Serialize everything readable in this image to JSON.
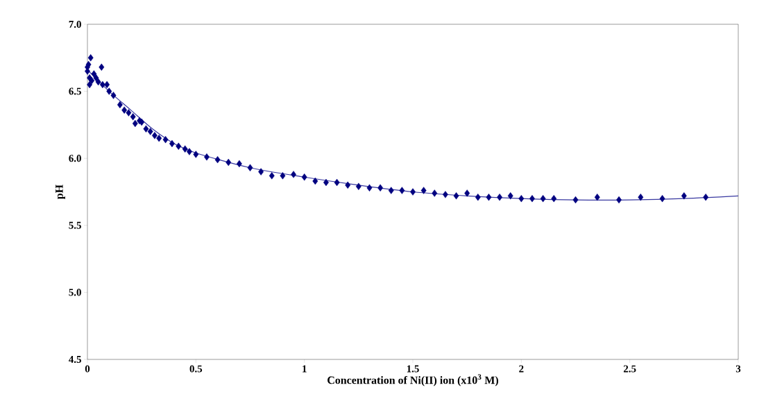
{
  "chart_data": {
    "type": "scatter",
    "xlabel": "Concentration of Ni(II) ion (x10$^{3}$ M)",
    "ylabel": "pH",
    "xlim": [
      0,
      3
    ],
    "ylim": [
      4.5,
      7.0
    ],
    "xticks": [
      0,
      0.5,
      1,
      1.5,
      2,
      2.5,
      3
    ],
    "yticks": [
      {
        "value": 4.5,
        "label": "4.5"
      },
      {
        "value": 5.0,
        "label": "5.0"
      },
      {
        "value": 5.5,
        "label": "5.5"
      },
      {
        "value": 6.0,
        "label": "6.0"
      },
      {
        "value": 6.5,
        "label": "6.5"
      },
      {
        "value": 7.0,
        "label": "7.0"
      }
    ],
    "series": [
      {
        "marker": "diamond",
        "color": "#000080",
        "x": [
          0,
          0,
          0.005,
          0.01,
          0.01,
          0.015,
          0.02,
          0.03,
          0.04,
          0.05,
          0.065,
          0.07,
          0.09,
          0.1,
          0.12,
          0.15,
          0.17,
          0.19,
          0.21,
          0.22,
          0.24,
          0.25,
          0.27,
          0.29,
          0.31,
          0.33,
          0.36,
          0.39,
          0.42,
          0.45,
          0.47,
          0.5,
          0.55,
          0.6,
          0.65,
          0.7,
          0.75,
          0.8,
          0.85,
          0.9,
          0.95,
          1.0,
          1.05,
          1.1,
          1.15,
          1.2,
          1.25,
          1.3,
          1.35,
          1.4,
          1.45,
          1.5,
          1.55,
          1.6,
          1.65,
          1.7,
          1.75,
          1.8,
          1.85,
          1.9,
          1.95,
          2.0,
          2.05,
          2.1,
          2.15,
          2.25,
          2.35,
          2.45,
          2.55,
          2.65,
          2.75,
          2.85
        ],
        "values": [
          6.68,
          6.65,
          6.7,
          6.6,
          6.55,
          6.75,
          6.58,
          6.63,
          6.6,
          6.57,
          6.68,
          6.55,
          6.55,
          6.5,
          6.47,
          6.4,
          6.36,
          6.34,
          6.31,
          6.26,
          6.28,
          6.27,
          6.22,
          6.2,
          6.17,
          6.15,
          6.14,
          6.11,
          6.09,
          6.07,
          6.05,
          6.03,
          6.01,
          5.99,
          5.97,
          5.96,
          5.93,
          5.9,
          5.87,
          5.87,
          5.88,
          5.86,
          5.83,
          5.82,
          5.82,
          5.8,
          5.79,
          5.78,
          5.78,
          5.76,
          5.76,
          5.75,
          5.76,
          5.74,
          5.73,
          5.72,
          5.74,
          5.71,
          5.71,
          5.71,
          5.72,
          5.7,
          5.7,
          5.7,
          5.7,
          5.69,
          5.71,
          5.69,
          5.71,
          5.7,
          5.72,
          5.71
        ]
      },
      {
        "type": "line",
        "marker": "none",
        "color": "#3838a0",
        "x": [
          0,
          0.1,
          0.2,
          0.3,
          0.4,
          0.5,
          0.75,
          1.0,
          1.25,
          1.5,
          1.75,
          2.0,
          2.25,
          2.5,
          2.75,
          3.0
        ],
        "values": [
          6.66,
          6.5,
          6.36,
          6.22,
          6.11,
          6.04,
          5.93,
          5.86,
          5.8,
          5.75,
          5.72,
          5.7,
          5.69,
          5.69,
          5.7,
          5.72
        ]
      }
    ]
  }
}
